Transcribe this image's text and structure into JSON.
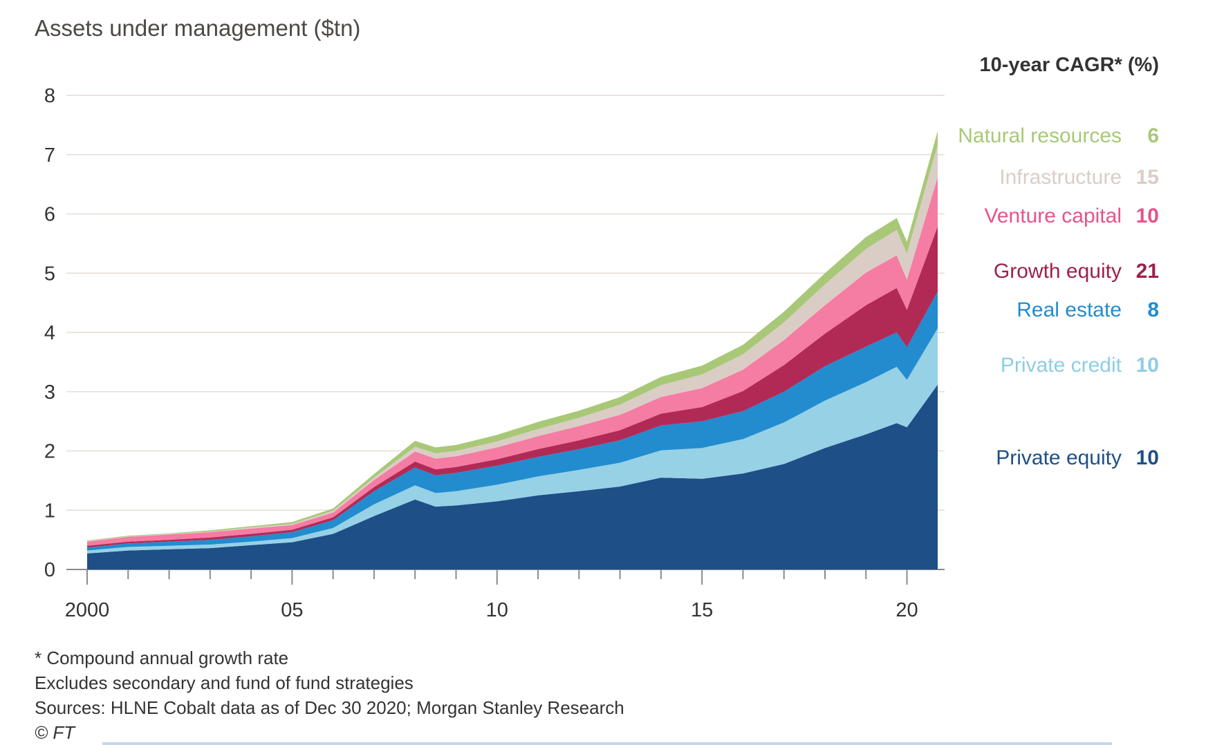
{
  "title": "Assets under management ($tn)",
  "legend_header": "10-year CAGR* (%)",
  "notes": [
    "* Compound annual growth rate",
    "Excludes secondary and fund of fund strategies",
    "Sources: HLNE Cobalt data as of Dec 30 2020; Morgan Stanley Research",
    "© FT"
  ],
  "colors": {
    "private_equity": "#1e4f87",
    "private_credit": "#96d1e6",
    "real_estate": "#228ccf",
    "growth_equity": "#b12a56",
    "venture_capital": "#f57ca3",
    "infrastructure": "#dacdc5",
    "natural_resources": "#a8c878"
  },
  "legend": [
    {
      "name": "Natural resources",
      "cagr": "6",
      "color": "#a8c878"
    },
    {
      "name": "Infrastructure",
      "cagr": "15",
      "color": "#dacdc5"
    },
    {
      "name": "Venture capital",
      "cagr": "10",
      "color": "#e7528a"
    },
    {
      "name": "Growth equity",
      "cagr": "21",
      "color": "#9c2149"
    },
    {
      "name": "Real estate",
      "cagr": "8",
      "color": "#228ccf"
    },
    {
      "name": "Private credit",
      "cagr": "10",
      "color": "#8dcde4"
    },
    {
      "name": "Private equity",
      "cagr": "10",
      "color": "#1e4f87"
    }
  ],
  "chart_data": {
    "type": "area",
    "stacked": true,
    "title": "Assets under management ($tn)",
    "xlabel": "",
    "ylabel": "",
    "ylim": [
      0,
      8
    ],
    "xlim": [
      2000,
      2020.75
    ],
    "x_tick_labels": [
      "2000",
      "05",
      "10",
      "15",
      "20"
    ],
    "x_tick_values": [
      2000,
      2005,
      2010,
      2015,
      2020
    ],
    "y_ticks": [
      0,
      1,
      2,
      3,
      4,
      5,
      6,
      7,
      8
    ],
    "grid": "horizontal",
    "legend_placement": "right",
    "x": [
      2000,
      2001,
      2002,
      2003,
      2004,
      2005,
      2006,
      2007,
      2008,
      2008.5,
      2009,
      2010,
      2011,
      2012,
      2013,
      2014,
      2015,
      2016,
      2017,
      2018,
      2019,
      2019.75,
      2020,
      2020.75
    ],
    "series": [
      {
        "name": "Private equity",
        "cagr": 10,
        "values": [
          0.27,
          0.32,
          0.34,
          0.36,
          0.41,
          0.46,
          0.6,
          0.9,
          1.18,
          1.06,
          1.08,
          1.15,
          1.25,
          1.32,
          1.4,
          1.55,
          1.53,
          1.62,
          1.78,
          2.05,
          2.28,
          2.47,
          2.4,
          3.12
        ]
      },
      {
        "name": "Private credit",
        "cagr": 10,
        "values": [
          0.05,
          0.06,
          0.06,
          0.06,
          0.06,
          0.07,
          0.1,
          0.2,
          0.24,
          0.23,
          0.24,
          0.28,
          0.32,
          0.36,
          0.4,
          0.46,
          0.52,
          0.58,
          0.7,
          0.8,
          0.88,
          0.95,
          0.8,
          0.95
        ]
      },
      {
        "name": "Real estate",
        "cagr": 8,
        "values": [
          0.05,
          0.06,
          0.07,
          0.08,
          0.09,
          0.1,
          0.13,
          0.22,
          0.3,
          0.3,
          0.31,
          0.32,
          0.33,
          0.35,
          0.38,
          0.42,
          0.45,
          0.47,
          0.52,
          0.58,
          0.6,
          0.58,
          0.55,
          0.62
        ]
      },
      {
        "name": "Growth equity",
        "cagr": 21,
        "values": [
          0.03,
          0.03,
          0.03,
          0.04,
          0.04,
          0.04,
          0.05,
          0.07,
          0.1,
          0.1,
          0.1,
          0.11,
          0.13,
          0.15,
          0.17,
          0.2,
          0.24,
          0.34,
          0.45,
          0.55,
          0.7,
          0.75,
          0.63,
          1.1
        ]
      },
      {
        "name": "Venture capital",
        "cagr": 10,
        "values": [
          0.07,
          0.08,
          0.09,
          0.09,
          0.09,
          0.08,
          0.08,
          0.12,
          0.17,
          0.18,
          0.18,
          0.2,
          0.22,
          0.24,
          0.26,
          0.28,
          0.32,
          0.36,
          0.42,
          0.48,
          0.55,
          0.55,
          0.51,
          0.83
        ]
      },
      {
        "name": "Infrastructure",
        "cagr": 15,
        "values": [
          0.01,
          0.01,
          0.01,
          0.01,
          0.02,
          0.02,
          0.03,
          0.04,
          0.08,
          0.09,
          0.09,
          0.1,
          0.12,
          0.14,
          0.17,
          0.2,
          0.23,
          0.26,
          0.3,
          0.35,
          0.4,
          0.43,
          0.44,
          0.55
        ]
      },
      {
        "name": "Natural resources",
        "cagr": 6,
        "values": [
          0.01,
          0.01,
          0.01,
          0.02,
          0.02,
          0.03,
          0.04,
          0.06,
          0.1,
          0.1,
          0.1,
          0.11,
          0.12,
          0.12,
          0.13,
          0.14,
          0.15,
          0.16,
          0.18,
          0.19,
          0.2,
          0.2,
          0.2,
          0.23
        ]
      }
    ]
  }
}
